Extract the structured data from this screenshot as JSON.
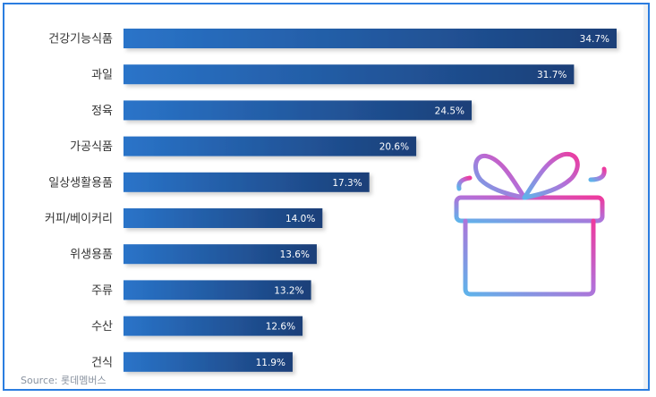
{
  "chart_data": {
    "type": "bar",
    "orientation": "horizontal",
    "categories": [
      "건강기능식품",
      "과일",
      "정육",
      "가공식품",
      "일상생활용품",
      "커피/베이커리",
      "위생용품",
      "주류",
      "수산",
      "건식"
    ],
    "values": [
      34.7,
      31.7,
      24.5,
      20.6,
      17.3,
      14.0,
      13.6,
      13.2,
      12.6,
      11.9
    ],
    "value_labels": [
      "34.7%",
      "31.7%",
      "24.5%",
      "20.6%",
      "17.3%",
      "14.0%",
      "13.6%",
      "13.2%",
      "12.6%",
      "11.9%"
    ],
    "xlim": [
      0,
      34.7
    ],
    "grid": false,
    "colors": {
      "bar_start": "#2a74c9",
      "bar_end": "#1b3f78",
      "label": "#ffffff",
      "category": "#333333"
    }
  },
  "source": "Source: 롯데멤버스",
  "decoration": {
    "icon": "gift-box-icon"
  }
}
